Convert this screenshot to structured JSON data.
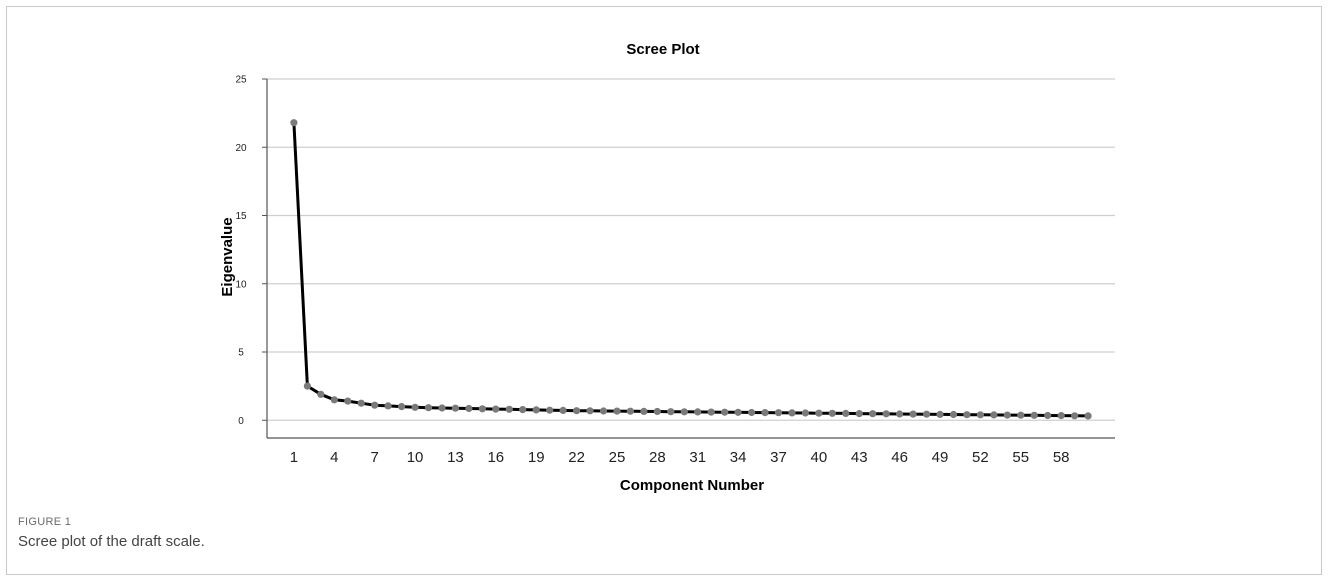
{
  "figure": {
    "label": "FIGURE 1",
    "caption": "Scree plot of the draft scale."
  },
  "chart_data": {
    "type": "line",
    "title": "Scree Plot",
    "xlabel": "Component Number",
    "ylabel": "Eigenvalue",
    "xlim": [
      -1,
      62
    ],
    "ylim": [
      -1.3,
      25
    ],
    "y_ticks": [
      0,
      5,
      10,
      15,
      20,
      25
    ],
    "x_ticks": [
      1,
      4,
      7,
      10,
      13,
      16,
      19,
      22,
      25,
      28,
      31,
      34,
      37,
      40,
      43,
      46,
      49,
      52,
      55,
      58
    ],
    "grid": true,
    "series": [
      {
        "x": [
          1,
          2,
          3,
          4,
          5,
          6,
          7,
          8,
          9,
          10,
          11,
          12,
          13,
          14,
          15,
          16,
          17,
          18,
          19,
          20,
          21,
          22,
          23,
          24,
          25,
          26,
          27,
          28,
          29,
          30,
          31,
          32,
          33,
          34,
          35,
          36,
          37,
          38,
          39,
          40,
          41,
          42,
          43,
          44,
          45,
          46,
          47,
          48,
          49,
          50,
          51,
          52,
          53,
          54,
          55,
          56,
          57,
          58,
          59,
          60
        ],
        "values": [
          21.8,
          2.5,
          1.9,
          1.5,
          1.4,
          1.25,
          1.1,
          1.05,
          1.0,
          0.95,
          0.92,
          0.9,
          0.88,
          0.86,
          0.84,
          0.82,
          0.8,
          0.78,
          0.76,
          0.74,
          0.72,
          0.7,
          0.69,
          0.68,
          0.67,
          0.66,
          0.65,
          0.64,
          0.63,
          0.62,
          0.61,
          0.6,
          0.59,
          0.58,
          0.57,
          0.56,
          0.55,
          0.54,
          0.53,
          0.52,
          0.51,
          0.5,
          0.49,
          0.48,
          0.47,
          0.46,
          0.45,
          0.44,
          0.43,
          0.42,
          0.41,
          0.4,
          0.39,
          0.38,
          0.37,
          0.36,
          0.35,
          0.34,
          0.33,
          0.32
        ],
        "line_color": "#000000",
        "marker_color": "#7a7a7a"
      }
    ]
  }
}
